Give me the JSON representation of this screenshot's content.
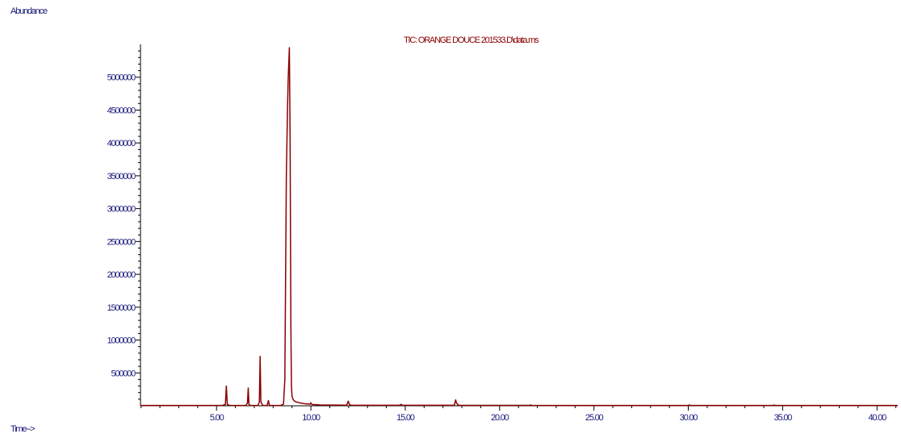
{
  "chart_data": {
    "type": "line",
    "title": "TIC: ORANGE DOUCE 201533.D\\data.ms",
    "ylabel": "Abundance",
    "xlabel": "Time-->",
    "xlim": [
      0.97,
      41.1
    ],
    "ylim": [
      0,
      5500000
    ],
    "x_ticks": [
      5.0,
      10.0,
      15.0,
      20.0,
      25.0,
      30.0,
      35.0,
      40.0
    ],
    "x_tick_labels": [
      "5.00",
      "10.00",
      "15.00",
      "20.00",
      "25.00",
      "30.00",
      "35.00",
      "40.00"
    ],
    "y_ticks": [
      500000,
      1000000,
      1500000,
      2000000,
      2500000,
      3000000,
      3500000,
      4000000,
      4500000,
      5000000
    ],
    "y_tick_labels": [
      "500000",
      "1000000",
      "1500000",
      "2000000",
      "2500000",
      "3000000",
      "3500000",
      "4000000",
      "4500000",
      "5000000"
    ],
    "grid": false,
    "color": "#8b0000",
    "axis_color": "#000000",
    "label_color": "#1a1a7a",
    "series": [
      {
        "x": [
          0.97,
          5.3,
          5.47,
          5.52,
          5.57,
          5.7,
          6.55,
          6.64,
          6.68,
          6.72,
          6.8,
          7.2,
          7.27,
          7.31,
          7.35,
          7.45,
          7.68,
          7.75,
          7.8,
          7.9,
          8.4,
          8.55,
          8.62,
          8.7,
          8.76,
          8.8,
          8.86,
          8.9,
          8.94,
          8.97,
          9.0,
          9.05,
          9.1,
          9.2,
          9.4,
          9.7,
          9.95,
          10.0,
          10.05,
          10.5,
          11.9,
          11.98,
          12.05,
          12.15,
          14.7,
          14.78,
          14.85,
          17.6,
          17.67,
          17.72,
          17.8,
          17.9,
          21.6,
          21.65,
          21.7,
          30.0,
          30.05,
          30.1,
          34.5,
          34.55,
          34.6,
          41.1
        ],
        "y": [
          5000,
          5000,
          20000,
          300000,
          20000,
          5000,
          5000,
          40000,
          270000,
          20000,
          5000,
          5000,
          60000,
          750000,
          60000,
          5000,
          5000,
          80000,
          10000,
          5000,
          5000,
          25000,
          400000,
          3500000,
          4500000,
          5000000,
          5450000,
          4000000,
          1200000,
          300000,
          150000,
          100000,
          80000,
          60000,
          45000,
          30000,
          25000,
          45000,
          20000,
          12000,
          10000,
          70000,
          15000,
          8000,
          8000,
          22000,
          7000,
          7000,
          90000,
          40000,
          12000,
          6000,
          6000,
          14000,
          5000,
          5000,
          12000,
          5000,
          5000,
          12000,
          5000,
          5000
        ]
      }
    ]
  }
}
